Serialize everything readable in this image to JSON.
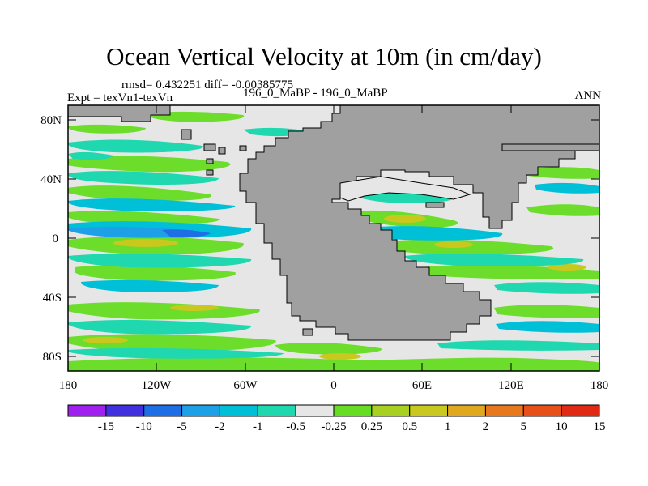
{
  "title": "Ocean Vertical Velocity at 10m (in cm/day)",
  "stats": {
    "rmsd_diff": "rmsd= 0.432251 diff= -0.00385775"
  },
  "experiment": "Expt = texVn1-texVn",
  "cases": "196_0_MaBP - 196_0_MaBP",
  "season": "ANN",
  "map": {
    "lat_ticks": [
      "80N",
      "40N",
      "0",
      "40S",
      "80S"
    ],
    "lon_ticks": [
      "180",
      "120W",
      "60W",
      "0",
      "60E",
      "120E",
      "180"
    ],
    "land_color": "#a0a0a0",
    "ocean_neutral_color": "#e6e6e6"
  },
  "colorbar": {
    "labels": [
      "-15",
      "-10",
      "-5",
      "-2",
      "-1",
      "-0.5",
      "-0.25",
      "0.25",
      "0.5",
      "1",
      "2",
      "5",
      "10",
      "15"
    ],
    "colors": [
      "#a020f0",
      "#4030e0",
      "#1e6ee6",
      "#1ea0e6",
      "#00c0d8",
      "#20d8b0",
      "#e6e6e6",
      "#66dd22",
      "#a8d020",
      "#c8c81e",
      "#e0a81e",
      "#e8781e",
      "#e8501a",
      "#e02a14"
    ]
  }
}
